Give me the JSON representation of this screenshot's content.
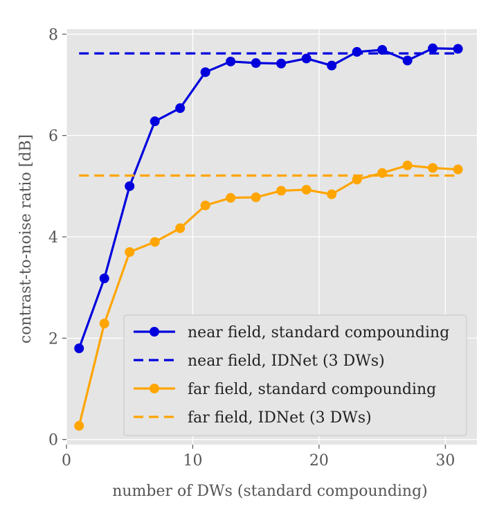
{
  "chart_data": {
    "type": "line",
    "xlabel": "number of DWs (standard compounding)",
    "ylabel": "contrast-to-noise ratio [dB]",
    "xlim": [
      0,
      32.5
    ],
    "ylim": [
      -0.1,
      8.1
    ],
    "xticks": [
      0,
      10,
      20,
      30
    ],
    "yticks": [
      0,
      2,
      4,
      6,
      8
    ],
    "grid": true,
    "legend_position": "lower right",
    "series": [
      {
        "name": "near field, standard compounding",
        "style": "solid-markers",
        "color": "#0000dd",
        "x": [
          1,
          3,
          5,
          7,
          9,
          11,
          13,
          15,
          17,
          19,
          21,
          23,
          25,
          27,
          29,
          31
        ],
        "y": [
          1.8,
          3.18,
          5.0,
          6.28,
          6.54,
          7.25,
          7.46,
          7.43,
          7.42,
          7.52,
          7.38,
          7.65,
          7.69,
          7.48,
          7.72,
          7.71
        ]
      },
      {
        "name": "near field, IDNet (3 DWs)",
        "style": "dashed",
        "color": "#0000dd",
        "x": [
          1,
          31
        ],
        "y": [
          7.62,
          7.62
        ]
      },
      {
        "name": "far field, standard compounding",
        "style": "solid-markers",
        "color": "#ffa500",
        "x": [
          1,
          3,
          5,
          7,
          9,
          11,
          13,
          15,
          17,
          19,
          21,
          23,
          25,
          27,
          29,
          31
        ],
        "y": [
          0.27,
          2.29,
          3.7,
          3.9,
          4.17,
          4.62,
          4.77,
          4.78,
          4.91,
          4.93,
          4.84,
          5.13,
          5.26,
          5.41,
          5.36,
          5.33
        ]
      },
      {
        "name": "far field, IDNet (3 DWs)",
        "style": "dashed",
        "color": "#ffa500",
        "x": [
          1,
          31
        ],
        "y": [
          5.21,
          5.21
        ]
      }
    ]
  },
  "colors": {
    "plot_background": "#e5e5e5",
    "grid": "#ffffff",
    "axis_text": "#555555"
  }
}
